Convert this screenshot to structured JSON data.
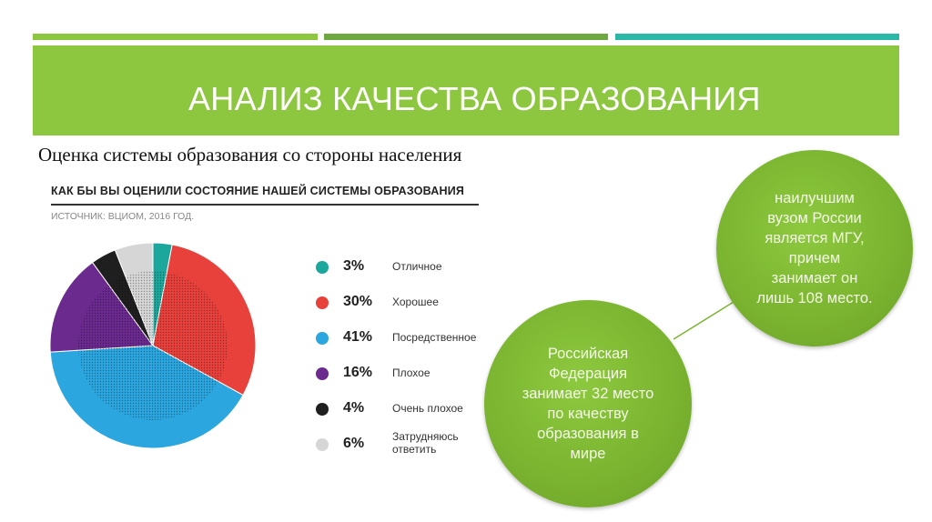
{
  "slide": {
    "title": "АНАЛИЗ КАЧЕСТВА ОБРАЗОВАНИЯ",
    "subtitle": "Оценка системы образования со стороны населения"
  },
  "chart_data": {
    "type": "pie",
    "title": "КАК БЫ ВЫ ОЦЕНИЛИ СОСТОЯНИЕ НАШЕЙ СИСТЕМЫ ОБРАЗОВАНИЯ",
    "source": "ИСТОЧНИК: ВЦИОМ, 2016 ГОД.",
    "categories": [
      "Отличное",
      "Хорошее",
      "Посредственное",
      "Плохое",
      "Очень плохое",
      "Затрудняюсь ответить"
    ],
    "values": [
      3,
      30,
      41,
      16,
      4,
      6
    ],
    "value_labels": [
      "3%",
      "30%",
      "41%",
      "16%",
      "4%",
      "6%"
    ],
    "colors": [
      "#1ba79c",
      "#e8413c",
      "#2ba6df",
      "#6a2a8e",
      "#1f1f1f",
      "#d6d6d6"
    ],
    "legend_position": "right"
  },
  "bubbles": {
    "top": "наилучшим\nвузом России\nявляется МГУ,\nпричем\nзанимает он\nлишь 108 место.",
    "bottom": "Российская\nФедерация\nзанимает 32 место\nпо качеству\nобразования в\nмире"
  },
  "colors": {
    "accent_green": "#8dc63f",
    "dark_green": "#6fa840",
    "teal": "#2bb8a8"
  }
}
